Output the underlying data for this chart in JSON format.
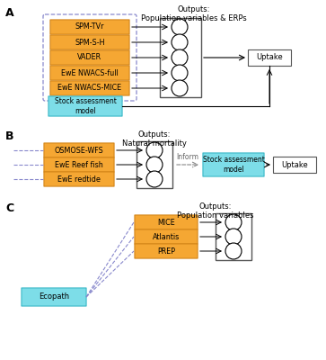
{
  "fig_width": 3.63,
  "fig_height": 4.0,
  "dpi": 100,
  "orange": "#F5A733",
  "orange_edge": "#D4861A",
  "cyan": "#7DDDE8",
  "cyan_edge": "#3BB8C8",
  "dashed_blue": "#8888CC",
  "dashed_orange": "#D4921A",
  "panel_A": {
    "label": "A",
    "output_title": "Outputs:\nPopulation variables & ERPs",
    "models": [
      "SPM-TVr",
      "SPM-S-H",
      "VADER",
      "EwE NWACS-full",
      "EwE NWACS-MICE"
    ],
    "stock_label": "Stock assessment\nmodel",
    "uptake_label": "Uptake"
  },
  "panel_B": {
    "label": "B",
    "output_title": "Outputs:\nNatural mortality",
    "models": [
      "OSMOSE-WFS",
      "EwE Reef fish",
      "EwE redtide"
    ],
    "stock_label": "Stock assessment\nmodel",
    "uptake_label": "Uptake",
    "inform_label": "Inform"
  },
  "panel_C": {
    "label": "C",
    "output_title": "Outputs:\nPopulation variables",
    "models": [
      "MICE",
      "Atlantis",
      "PREP"
    ],
    "ecopath_label": "Ecopath"
  }
}
